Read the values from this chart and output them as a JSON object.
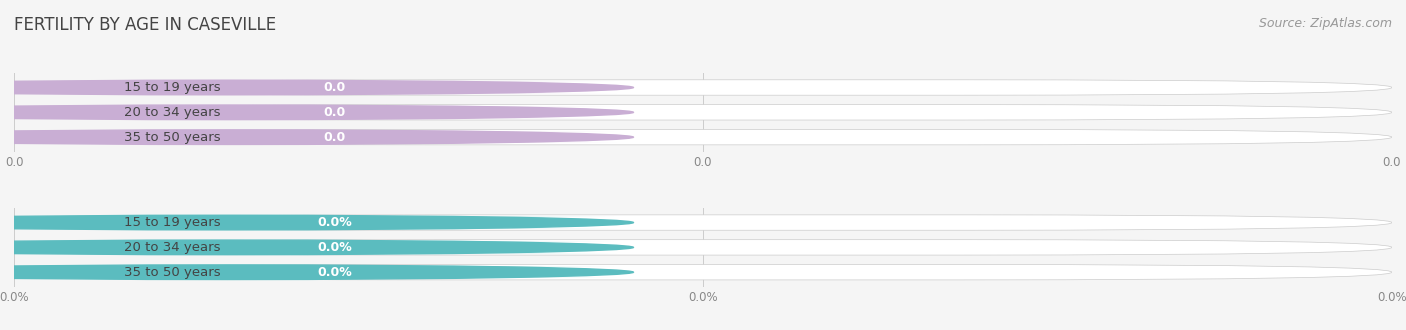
{
  "title": "FERTILITY BY AGE IN CASEVILLE",
  "source": "Source: ZipAtlas.com",
  "chart1": {
    "categories": [
      "15 to 19 years",
      "20 to 34 years",
      "35 to 50 years"
    ],
    "values": [
      0.0,
      0.0,
      0.0
    ],
    "bar_color": "#c9aed4",
    "value_label": [
      "0.0",
      "0.0",
      "0.0"
    ],
    "tick_display": [
      "0.0",
      "0.0",
      "0.0"
    ]
  },
  "chart2": {
    "categories": [
      "15 to 19 years",
      "20 to 34 years",
      "35 to 50 years"
    ],
    "values": [
      0.0,
      0.0,
      0.0
    ],
    "bar_color": "#5bbcbf",
    "value_label": [
      "0.0%",
      "0.0%",
      "0.0%"
    ],
    "tick_display": [
      "0.0%",
      "0.0%",
      "0.0%"
    ]
  },
  "background_color": "#f5f5f5",
  "bar_bg_color": "#e4e4e4",
  "bar_height": 0.62,
  "title_fontsize": 12,
  "label_fontsize": 9.5,
  "value_fontsize": 9,
  "tick_fontsize": 8.5,
  "source_fontsize": 9
}
